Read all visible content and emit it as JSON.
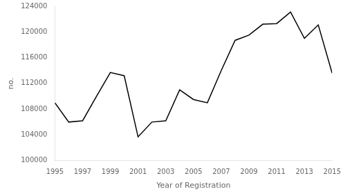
{
  "chart_data": {
    "type": "line",
    "x": [
      1995,
      1996,
      1997,
      1998,
      1999,
      2000,
      2001,
      2002,
      2003,
      2004,
      2005,
      2006,
      2007,
      2008,
      2009,
      2010,
      2011,
      2012,
      2013,
      2014,
      2015
    ],
    "values": [
      109000,
      106000,
      106200,
      110000,
      113700,
      113200,
      103700,
      106000,
      106200,
      111000,
      109500,
      109000,
      114000,
      118700,
      119500,
      121200,
      121300,
      123100,
      119000,
      121100,
      113600
    ],
    "color": "#000000",
    "xlim": [
      1995,
      2015
    ],
    "xticks": [
      1995,
      1997,
      1999,
      2001,
      2003,
      2005,
      2007,
      2009,
      2011,
      2013,
      2015
    ],
    "ylim": [
      100000,
      124000
    ],
    "yticks": [
      100000,
      104000,
      108000,
      112000,
      116000,
      120000,
      124000
    ],
    "xlabel": "Year of Registration",
    "ylabel": "no.",
    "grid": false
  }
}
